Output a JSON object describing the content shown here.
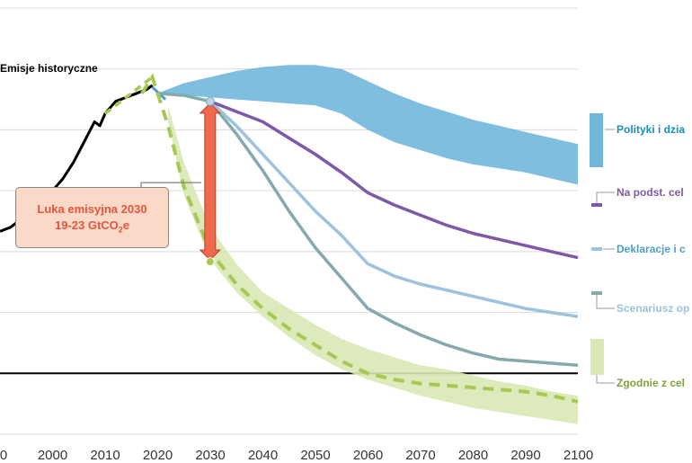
{
  "chart_data": {
    "type": "line",
    "title": "",
    "xlabel": "",
    "ylabel": "",
    "xlim": [
      1990,
      2100
    ],
    "ylim": [
      -15,
      90
    ],
    "x_ticks": [
      "0",
      "2000",
      "2010",
      "2020",
      "2030",
      "2040",
      "2050",
      "2060",
      "2070",
      "2080",
      "2090",
      "2100"
    ],
    "grid": true,
    "series": [
      {
        "name": "Emisje historyczne",
        "color": "#000000",
        "x": [
          1990,
          1992,
          1994,
          1996,
          1998,
          2000,
          2002,
          2004,
          2006,
          2008,
          2009,
          2010,
          2012,
          2014,
          2016,
          2018,
          2019
        ],
        "y": [
          35,
          36,
          38,
          40,
          42,
          45,
          48,
          52,
          57,
          62,
          61,
          64,
          67,
          68,
          69,
          70,
          71
        ]
      },
      {
        "name": "Polityki i dzia",
        "color": "#71b7db",
        "band_x": [
          2020,
          2025,
          2030,
          2035,
          2040,
          2045,
          2050,
          2055,
          2060,
          2065,
          2070,
          2075,
          2080,
          2085,
          2090,
          2095,
          2100
        ],
        "band_upper": [
          69,
          71.5,
          73,
          74.5,
          75.5,
          76,
          76,
          75,
          72,
          69,
          66.5,
          64.5,
          62.5,
          61,
          59.5,
          58,
          56.5
        ],
        "band_lower": [
          69,
          68.5,
          68,
          67.5,
          67,
          66.5,
          66,
          64,
          60,
          57,
          55,
          53,
          51.5,
          50.5,
          49.5,
          48,
          46.5
        ]
      },
      {
        "name": "Na podst. cel",
        "color": "#7f58a8",
        "x": [
          2030,
          2035,
          2040,
          2045,
          2050,
          2055,
          2060,
          2065,
          2070,
          2075,
          2080,
          2085,
          2090,
          2095,
          2100
        ],
        "y": [
          67,
          64.5,
          62,
          58,
          54,
          49.5,
          44.5,
          41.5,
          39,
          36.5,
          34.5,
          33,
          31.5,
          30,
          28.5
        ]
      },
      {
        "name": "Deklaracje i c",
        "color": "#9cc3dd",
        "x": [
          2030,
          2035,
          2040,
          2045,
          2050,
          2055,
          2060,
          2065,
          2070,
          2075,
          2080,
          2085,
          2090,
          2095,
          2100
        ],
        "y": [
          67,
          61,
          54,
          47,
          40,
          34,
          27,
          24,
          22,
          20.5,
          19,
          17.5,
          16,
          15,
          14
        ]
      },
      {
        "name": "Scenariusz op",
        "color": "#85aaae",
        "x": [
          2020,
          2025,
          2030,
          2035,
          2040,
          2045,
          2050,
          2055,
          2060,
          2065,
          2070,
          2075,
          2080,
          2085,
          2090,
          2095,
          2100
        ],
        "y": [
          69,
          68.5,
          67,
          59,
          50,
          40,
          31,
          23.5,
          16,
          12.5,
          9.5,
          7,
          5,
          3.5,
          3,
          2.5,
          2
        ]
      },
      {
        "name": "Zgodnie z cel",
        "color": "#a7c954",
        "x": [
          2017,
          2019,
          2022,
          2025,
          2030,
          2035,
          2040,
          2045,
          2050,
          2055,
          2060,
          2065,
          2070,
          2075,
          2080,
          2085,
          2090,
          2095,
          2100
        ],
        "y": [
          69,
          73,
          61,
          46,
          30,
          22,
          16,
          11,
          7,
          3,
          0,
          -1.5,
          -2.5,
          -3,
          -3.5,
          -4,
          -4.5,
          -5.5,
          -7
        ],
        "band_x": [
          2022,
          2025,
          2030,
          2035,
          2040,
          2045,
          2050,
          2055,
          2060,
          2065,
          2070,
          2075,
          2080,
          2085,
          2090,
          2095,
          2100
        ],
        "band_upper": [
          66,
          52,
          36,
          27,
          20,
          16,
          12,
          8.5,
          6,
          4,
          2,
          1,
          -0.5,
          -2,
          -3,
          -4.5,
          -5.5
        ],
        "band_lower": [
          62,
          44,
          28,
          20,
          14,
          9,
          4.5,
          1,
          -1.5,
          -3.5,
          -5.5,
          -7,
          -8.5,
          -9.5,
          -10.5,
          -11.5,
          -12.5
        ]
      }
    ],
    "annotations": {
      "gap_title": "Luka emisyjna 2030",
      "gap_value": "19-23 GtCO",
      "gap_value_sub": "2",
      "gap_value_suffix": "e",
      "gap_from": [
        2030,
        67
      ],
      "gap_to": [
        2030,
        27.5
      ],
      "gap_color": "#ef6a4d"
    }
  }
}
